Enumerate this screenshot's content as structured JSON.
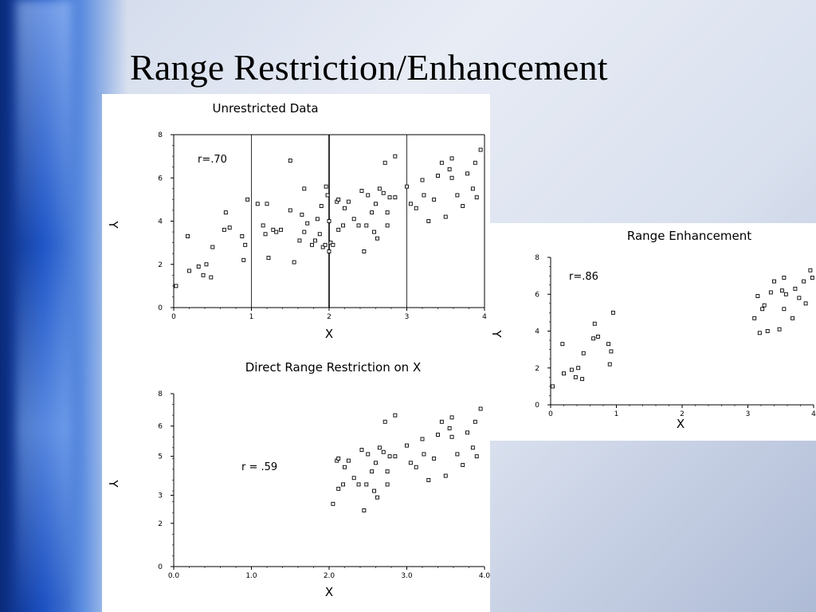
{
  "slide": {
    "title": "Range Restriction/Enhancement"
  },
  "chart_data": [
    {
      "type": "scatter",
      "title": "Unrestricted Data",
      "xlabel": "X",
      "ylabel": "Y",
      "annotation": "r=.70",
      "xlim": [
        0,
        4
      ],
      "ylim": [
        0,
        8
      ],
      "xticks": [
        "0",
        "1",
        "2",
        "3",
        "4"
      ],
      "yticks": [
        "0",
        "2",
        "4",
        "6",
        "8"
      ],
      "vlines": [
        1,
        2,
        3
      ],
      "points": [
        [
          0.03,
          1.0
        ],
        [
          0.18,
          3.3
        ],
        [
          0.2,
          1.7
        ],
        [
          0.32,
          1.9
        ],
        [
          0.38,
          1.5
        ],
        [
          0.42,
          2.0
        ],
        [
          0.48,
          1.4
        ],
        [
          0.5,
          2.8
        ],
        [
          0.65,
          3.6
        ],
        [
          0.67,
          4.4
        ],
        [
          0.72,
          3.7
        ],
        [
          0.88,
          3.3
        ],
        [
          0.9,
          2.2
        ],
        [
          0.92,
          2.9
        ],
        [
          0.95,
          5.0
        ],
        [
          1.08,
          4.8
        ],
        [
          1.15,
          3.8
        ],
        [
          1.18,
          3.4
        ],
        [
          1.2,
          4.8
        ],
        [
          1.22,
          2.3
        ],
        [
          1.28,
          3.6
        ],
        [
          1.32,
          3.5
        ],
        [
          1.38,
          3.6
        ],
        [
          1.5,
          6.8
        ],
        [
          1.5,
          4.5
        ],
        [
          1.55,
          2.1
        ],
        [
          1.62,
          3.1
        ],
        [
          1.65,
          4.3
        ],
        [
          1.68,
          3.5
        ],
        [
          1.68,
          5.5
        ],
        [
          1.72,
          3.9
        ],
        [
          1.78,
          2.9
        ],
        [
          1.82,
          3.1
        ],
        [
          1.85,
          4.1
        ],
        [
          1.88,
          3.4
        ],
        [
          1.9,
          4.7
        ],
        [
          1.92,
          2.8
        ],
        [
          1.95,
          2.9
        ],
        [
          1.96,
          5.6
        ],
        [
          1.98,
          5.2
        ],
        [
          2.0,
          2.6
        ],
        [
          2.02,
          3.0
        ],
        [
          2.0,
          4.0
        ],
        [
          2.05,
          2.9
        ],
        [
          2.1,
          4.9
        ],
        [
          2.12,
          3.6
        ],
        [
          2.12,
          5.0
        ],
        [
          2.18,
          3.8
        ],
        [
          2.2,
          4.6
        ],
        [
          2.25,
          4.9
        ],
        [
          2.32,
          4.1
        ],
        [
          2.38,
          3.8
        ],
        [
          2.42,
          5.4
        ],
        [
          2.45,
          2.6
        ],
        [
          2.48,
          3.8
        ],
        [
          2.5,
          5.2
        ],
        [
          2.55,
          4.4
        ],
        [
          2.58,
          3.5
        ],
        [
          2.6,
          4.8
        ],
        [
          2.62,
          3.2
        ],
        [
          2.65,
          5.5
        ],
        [
          2.7,
          5.3
        ],
        [
          2.72,
          6.7
        ],
        [
          2.75,
          3.8
        ],
        [
          2.75,
          4.4
        ],
        [
          2.78,
          5.1
        ],
        [
          2.85,
          5.1
        ],
        [
          2.85,
          7.0
        ],
        [
          3.0,
          5.6
        ],
        [
          3.05,
          4.8
        ],
        [
          3.12,
          4.6
        ],
        [
          3.2,
          5.9
        ],
        [
          3.22,
          5.2
        ],
        [
          3.28,
          4.0
        ],
        [
          3.35,
          5.0
        ],
        [
          3.4,
          6.1
        ],
        [
          3.45,
          6.7
        ],
        [
          3.5,
          4.2
        ],
        [
          3.55,
          6.4
        ],
        [
          3.58,
          6.9
        ],
        [
          3.58,
          6.0
        ],
        [
          3.65,
          5.2
        ],
        [
          3.72,
          4.7
        ],
        [
          3.78,
          6.2
        ],
        [
          3.85,
          5.5
        ],
        [
          3.88,
          6.7
        ],
        [
          3.9,
          5.1
        ],
        [
          3.95,
          7.3
        ]
      ]
    },
    {
      "type": "scatter",
      "title": "Direct Range Restriction on X",
      "xlabel": "X",
      "ylabel": "Y",
      "annotation": "r = .59",
      "xlim": [
        0,
        4
      ],
      "ylim": [
        0,
        8
      ],
      "xticks": [
        "0.0",
        "1.0",
        "2.0",
        "3.0",
        "4.0"
      ],
      "yticks": [
        "0",
        "2",
        "3",
        "5",
        "6",
        "8"
      ],
      "points": [
        [
          2.05,
          2.9
        ],
        [
          2.1,
          4.9
        ],
        [
          2.12,
          3.6
        ],
        [
          2.12,
          5.0
        ],
        [
          2.18,
          3.8
        ],
        [
          2.2,
          4.6
        ],
        [
          2.25,
          4.9
        ],
        [
          2.32,
          4.1
        ],
        [
          2.38,
          3.8
        ],
        [
          2.42,
          5.4
        ],
        [
          2.45,
          2.6
        ],
        [
          2.48,
          3.8
        ],
        [
          2.5,
          5.2
        ],
        [
          2.55,
          4.4
        ],
        [
          2.58,
          3.5
        ],
        [
          2.6,
          4.8
        ],
        [
          2.62,
          3.2
        ],
        [
          2.65,
          5.5
        ],
        [
          2.7,
          5.3
        ],
        [
          2.72,
          6.7
        ],
        [
          2.75,
          3.8
        ],
        [
          2.75,
          4.4
        ],
        [
          2.78,
          5.1
        ],
        [
          2.85,
          5.1
        ],
        [
          2.85,
          7.0
        ],
        [
          3.0,
          5.6
        ],
        [
          3.05,
          4.8
        ],
        [
          3.12,
          4.6
        ],
        [
          3.2,
          5.9
        ],
        [
          3.22,
          5.2
        ],
        [
          3.28,
          4.0
        ],
        [
          3.35,
          5.0
        ],
        [
          3.4,
          6.1
        ],
        [
          3.45,
          6.7
        ],
        [
          3.5,
          4.2
        ],
        [
          3.55,
          6.4
        ],
        [
          3.58,
          6.9
        ],
        [
          3.58,
          6.0
        ],
        [
          3.65,
          5.2
        ],
        [
          3.72,
          4.7
        ],
        [
          3.78,
          6.2
        ],
        [
          3.85,
          5.5
        ],
        [
          3.88,
          6.7
        ],
        [
          3.9,
          5.1
        ],
        [
          3.95,
          7.3
        ]
      ]
    },
    {
      "type": "scatter",
      "title": "Range Enhancement",
      "xlabel": "X",
      "ylabel": "Y",
      "annotation": "r=.86",
      "xlim": [
        0,
        4
      ],
      "ylim": [
        0,
        8
      ],
      "xticks": [
        "0",
        "1",
        "2",
        "3",
        "4"
      ],
      "yticks": [
        "0",
        "2",
        "4",
        "6",
        "8"
      ],
      "points": [
        [
          0.03,
          1.0
        ],
        [
          0.18,
          3.3
        ],
        [
          0.2,
          1.7
        ],
        [
          0.32,
          1.9
        ],
        [
          0.38,
          1.5
        ],
        [
          0.42,
          2.0
        ],
        [
          0.48,
          1.4
        ],
        [
          0.5,
          2.8
        ],
        [
          0.65,
          3.6
        ],
        [
          0.67,
          4.4
        ],
        [
          0.72,
          3.7
        ],
        [
          0.88,
          3.3
        ],
        [
          0.9,
          2.2
        ],
        [
          0.92,
          2.9
        ],
        [
          0.95,
          5.0
        ],
        [
          3.1,
          4.7
        ],
        [
          3.15,
          5.9
        ],
        [
          3.18,
          3.9
        ],
        [
          3.22,
          5.2
        ],
        [
          3.25,
          5.4
        ],
        [
          3.3,
          4.0
        ],
        [
          3.35,
          6.1
        ],
        [
          3.4,
          6.7
        ],
        [
          3.48,
          4.1
        ],
        [
          3.52,
          6.2
        ],
        [
          3.55,
          6.9
        ],
        [
          3.55,
          5.2
        ],
        [
          3.58,
          6.0
        ],
        [
          3.68,
          4.7
        ],
        [
          3.72,
          6.3
        ],
        [
          3.78,
          5.8
        ],
        [
          3.85,
          6.7
        ],
        [
          3.88,
          5.5
        ],
        [
          3.95,
          7.3
        ],
        [
          3.98,
          6.9
        ]
      ]
    }
  ]
}
